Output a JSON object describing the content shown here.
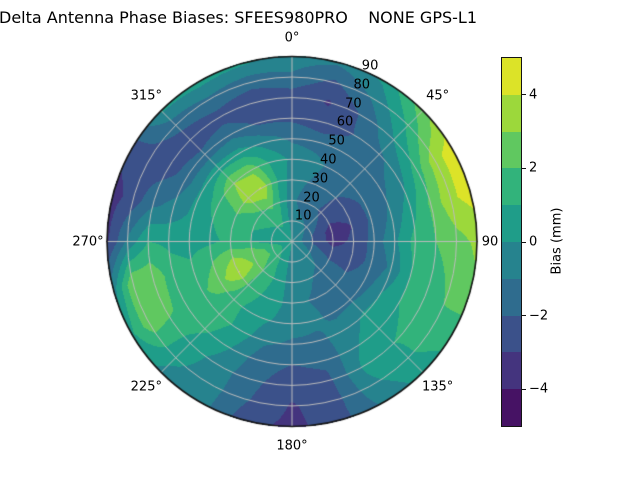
{
  "title": "Delta Antenna Phase Biases: SFEES980PRO    NONE GPS-L1",
  "colors": {
    "background": "#ffffff",
    "text": "#000000",
    "grid_line": "#bcbcbc",
    "axis_edge": "#141414"
  },
  "chart_data": {
    "type": "polar_contour",
    "title": "Delta Antenna Phase Biases: SFEES980PRO    NONE GPS-L1",
    "angular_ticks_deg": [
      0,
      45,
      90,
      135,
      180,
      225,
      270,
      315
    ],
    "angular_tick_labels": [
      "0°",
      "45°",
      "90",
      "135°",
      "180°",
      "225°",
      "270°",
      "315°"
    ],
    "radial_ticks": [
      10,
      20,
      30,
      40,
      50,
      60,
      70,
      80,
      90
    ],
    "radial_tick_labels": [
      "10",
      "20",
      "30",
      "40",
      "50",
      "60",
      "70",
      "80",
      "90"
    ],
    "radial_label_angle_deg": 24,
    "zenith_range": [
      0,
      90
    ],
    "levels": [
      -5,
      -4,
      -3,
      -2,
      -1,
      0,
      1,
      2,
      3,
      4,
      5
    ],
    "band_colors": [
      "#461264",
      "#44347e",
      "#3b518a",
      "#2f6c8e",
      "#26838e",
      "#1f9d89",
      "#32b37b",
      "#60c860",
      "#9cd83b",
      "#dce328"
    ],
    "colorbar": {
      "label": "Bias (mm)",
      "ticks": [
        4,
        2,
        0,
        -2,
        -4
      ],
      "tick_labels": [
        "4",
        "2",
        "0",
        "−2",
        "−4"
      ],
      "vmin": -5,
      "vmax": 5
    },
    "grid": {
      "azimuth_deg": [
        0,
        15,
        30,
        45,
        60,
        75,
        90,
        105,
        120,
        135,
        150,
        165,
        180,
        195,
        210,
        225,
        240,
        255,
        270,
        285,
        300,
        315,
        330,
        345
      ],
      "zenith_deg": [
        0,
        10,
        20,
        30,
        40,
        50,
        60,
        70,
        80,
        90
      ],
      "bias_mm": [
        [
          0.05,
          -0.5,
          -0.8,
          -0.5,
          -0.2,
          -1.2,
          -2.2,
          -2.6,
          -1.2,
          -0.4
        ],
        [
          0.05,
          -0.8,
          -1.3,
          -1.0,
          -0.6,
          -1.5,
          -2.6,
          -3.1,
          -2.2,
          -0.8
        ],
        [
          0.05,
          -0.9,
          -1.6,
          -1.5,
          -1.3,
          -1.6,
          -2.0,
          -1.8,
          -0.8,
          0.2
        ],
        [
          0.05,
          -1.2,
          -2.2,
          -2.0,
          -1.5,
          -1.5,
          -1.2,
          0.0,
          1.2,
          2.6
        ],
        [
          0.05,
          -1.6,
          -2.8,
          -2.6,
          -1.8,
          -1.2,
          -0.4,
          1.5,
          3.6,
          4.6
        ],
        [
          0.05,
          -2.0,
          -3.5,
          -3.0,
          -1.8,
          -0.8,
          0.6,
          2.2,
          3.8,
          4.4
        ],
        [
          0.05,
          -2.2,
          -3.4,
          -2.8,
          -1.6,
          -0.2,
          1.4,
          2.0,
          2.6,
          3.2
        ],
        [
          0.05,
          -1.6,
          -2.6,
          -2.4,
          -1.8,
          -0.8,
          1.0,
          1.5,
          2.2,
          2.8
        ],
        [
          0.05,
          -1.0,
          -1.8,
          -2.0,
          -1.6,
          0.0,
          1.0,
          1.2,
          1.8,
          1.4
        ],
        [
          0.05,
          -0.7,
          -1.2,
          -1.6,
          -1.2,
          0.2,
          0.8,
          1.0,
          0.8,
          0.4
        ],
        [
          0.05,
          -0.6,
          -1.0,
          -1.2,
          -1.2,
          -0.6,
          -0.2,
          0.2,
          -0.2,
          -0.8
        ],
        [
          0.05,
          -0.5,
          -0.8,
          -1.0,
          -0.8,
          -1.2,
          -1.8,
          -2.2,
          -2.4,
          -2.4
        ],
        [
          0.05,
          -0.4,
          -0.6,
          -0.4,
          -0.5,
          -1.2,
          -2.0,
          -2.6,
          -3.1,
          -3.3
        ],
        [
          0.05,
          0.2,
          0.4,
          0.3,
          0.0,
          -0.8,
          -1.6,
          -1.8,
          -2.0,
          -2.6
        ],
        [
          0.05,
          0.8,
          1.2,
          1.0,
          0.6,
          0.6,
          0.0,
          -0.5,
          -0.5,
          -0.5
        ],
        [
          0.05,
          1.4,
          2.0,
          1.8,
          1.4,
          1.6,
          1.2,
          0.6,
          0.2,
          -0.2
        ],
        [
          0.05,
          1.8,
          2.8,
          4.1,
          2.6,
          1.8,
          1.6,
          2.2,
          2.6,
          0.8
        ],
        [
          0.05,
          1.6,
          2.6,
          3.0,
          2.0,
          1.2,
          1.4,
          2.8,
          3.0,
          -0.5
        ],
        [
          0.05,
          0.6,
          1.0,
          1.2,
          0.8,
          0.6,
          0.8,
          1.0,
          -0.8,
          -3.2
        ],
        [
          0.05,
          0.6,
          1.0,
          1.4,
          1.0,
          0.2,
          -0.6,
          -1.2,
          -2.6,
          -3.4
        ],
        [
          0.05,
          0.8,
          1.4,
          2.2,
          1.6,
          0.2,
          -1.6,
          -2.4,
          -2.4,
          -2.6
        ],
        [
          0.05,
          1.0,
          1.8,
          3.6,
          3.0,
          0.6,
          -1.8,
          -2.6,
          -1.6,
          0.2
        ],
        [
          0.05,
          1.2,
          2.2,
          4.1,
          2.7,
          0.4,
          -1.4,
          -2.4,
          -1.2,
          0.4
        ],
        [
          0.05,
          0.4,
          0.8,
          1.2,
          0.8,
          -0.4,
          -2.2,
          -2.8,
          -1.6,
          0.2
        ]
      ]
    }
  }
}
